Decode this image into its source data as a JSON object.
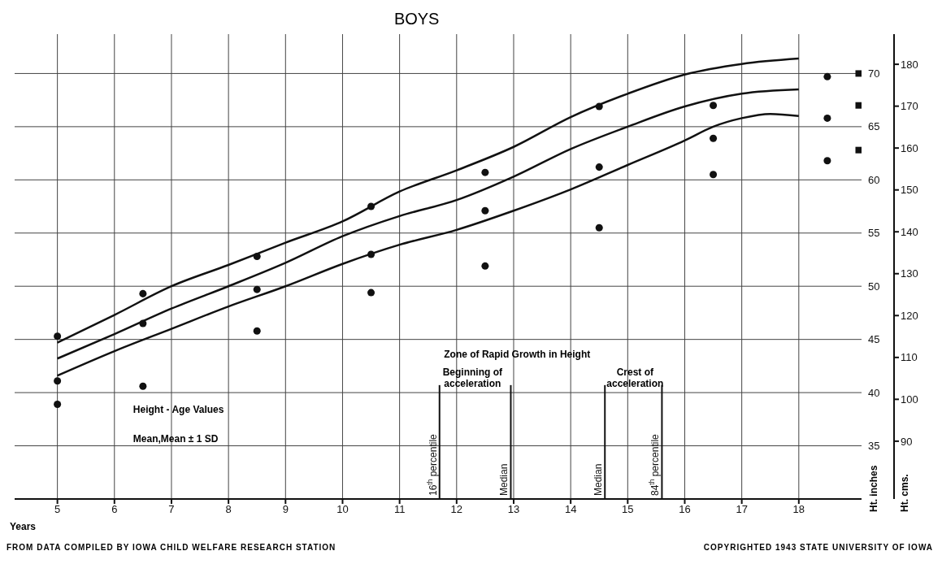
{
  "chart_data": {
    "type": "line",
    "title": "BOYS",
    "xlabel": "Years",
    "ylabel": "Ht. inches",
    "y2label": "Ht. cms.",
    "xlim": [
      4.25,
      19.1
    ],
    "xticks": [
      5,
      6,
      7,
      8,
      9,
      10,
      11,
      12,
      13,
      14,
      15,
      16,
      17,
      18
    ],
    "ylim": [
      30,
      73.7
    ],
    "yticks": [
      35,
      40,
      45,
      50,
      55,
      60,
      65,
      70
    ],
    "y2lim": [
      76.2,
      187.2
    ],
    "y2ticks": [
      90,
      100,
      110,
      120,
      130,
      140,
      150,
      160,
      170,
      180
    ],
    "grid": true,
    "marker": "none",
    "line_style": "solid",
    "series": [
      {
        "color": "#111111",
        "x": [
          5,
          6,
          7,
          8,
          9,
          10,
          11,
          12,
          13,
          14,
          15,
          16,
          17,
          18
        ],
        "values": [
          44.7,
          47.3,
          50.0,
          52.0,
          54.1,
          56.1,
          58.9,
          60.9,
          63.1,
          65.9,
          68.1,
          69.9,
          70.9,
          71.4
        ]
      },
      {
        "color": "#111111",
        "x": [
          5,
          6,
          7,
          8,
          9,
          10,
          11,
          12,
          13,
          14,
          15,
          16,
          17,
          18
        ],
        "values": [
          43.2,
          45.5,
          47.9,
          50.0,
          52.2,
          54.7,
          56.6,
          58.1,
          60.3,
          62.9,
          65.0,
          66.9,
          68.1,
          68.5
        ]
      },
      {
        "color": "#111111",
        "x": [
          5,
          6,
          7,
          8,
          9,
          10,
          11,
          12,
          13,
          14,
          15,
          16,
          16.5,
          17,
          17.5,
          18
        ],
        "values": [
          41.6,
          43.9,
          46.0,
          48.1,
          50.0,
          52.1,
          53.9,
          55.3,
          57.1,
          59.1,
          61.4,
          63.7,
          65.0,
          65.8,
          66.2,
          66.0
        ]
      },
      {
        "type": "scatter",
        "marker": "circle",
        "color": "#111111",
        "x": [
          5,
          6.5,
          8.5,
          10.5,
          12.5,
          14.5,
          16.5,
          18.5
        ],
        "values": [
          45.3,
          49.3,
          52.8,
          57.5,
          60.7,
          66.9,
          67.0,
          69.7
        ]
      },
      {
        "type": "scatter",
        "marker": "circle",
        "color": "#111111",
        "x": [
          5,
          6.5,
          8.5,
          10.5,
          12.5,
          14.5,
          16.5,
          18.5
        ],
        "values": [
          41.1,
          46.5,
          49.7,
          53.0,
          57.1,
          61.2,
          63.9,
          65.8
        ]
      },
      {
        "type": "scatter",
        "marker": "circle",
        "color": "#111111",
        "x": [
          5,
          6.5,
          8.5,
          10.5,
          12.5,
          14.5,
          16.5,
          18.5
        ],
        "values": [
          38.9,
          40.6,
          45.8,
          49.4,
          51.9,
          55.5,
          60.5,
          61.8
        ]
      },
      {
        "type": "scatter",
        "marker": "square",
        "color": "#111111",
        "x": [
          19.05,
          19.05,
          19.05
        ],
        "values": [
          70,
          67,
          62.8
        ]
      }
    ],
    "ref_lines": [
      {
        "axis": "x",
        "value": 11.7,
        "label": "16$^{th}$ percentile",
        "color": "#111111"
      },
      {
        "axis": "x",
        "value": 12.95,
        "label": "Median",
        "color": "#111111"
      },
      {
        "axis": "x",
        "value": 14.6,
        "label": "Median",
        "color": "#111111"
      },
      {
        "axis": "x",
        "value": 15.6,
        "label": "84$^{th}$ percentile",
        "color": "#111111"
      }
    ],
    "annotations": [
      "Zone of Rapid Growth in Height",
      "Beginning of acceleration",
      "Crest of acceleration",
      "Height - Age Values",
      "Mean,Mean ± 1 SD",
      "FROM DATA COMPILED BY IOWA CHILD WELFARE RESEARCH STATION",
      "COPYRIGHTED 1943 STATE UNIVERSITY OF IOWA"
    ]
  }
}
